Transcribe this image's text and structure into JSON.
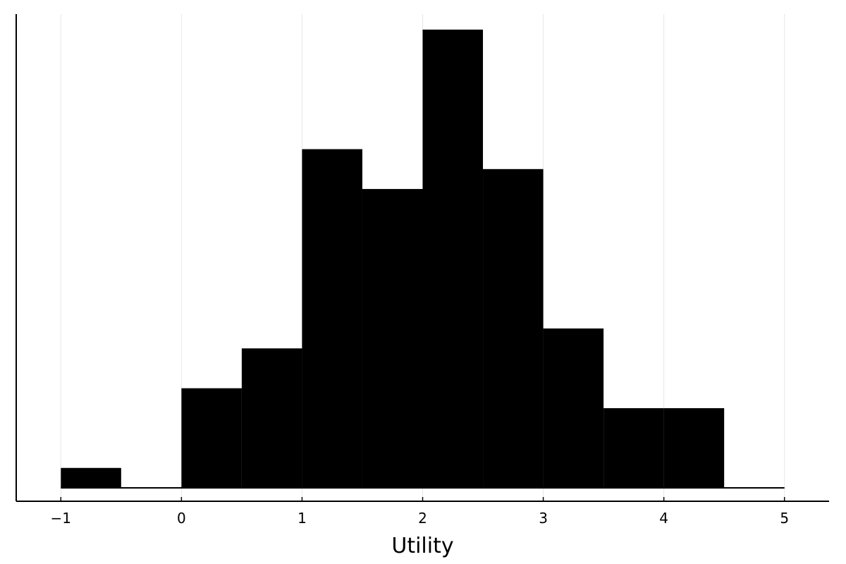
{
  "chart_data": {
    "type": "bar",
    "subtype": "histogram",
    "xlabel": "Utility",
    "ylabel": "",
    "xlim": [
      -1.37,
      5.37
    ],
    "ylim": [
      0,
      23
    ],
    "x_ticks": [
      -1,
      0,
      1,
      2,
      3,
      4,
      5
    ],
    "x_tick_labels": [
      "−1",
      "0",
      "1",
      "2",
      "3",
      "4",
      "5"
    ],
    "bin_edges": [
      -1,
      -0.5,
      0,
      0.5,
      1,
      1.5,
      2,
      2.5,
      3,
      3.5,
      4,
      4.5,
      5
    ],
    "counts": [
      1,
      0,
      5,
      7,
      17,
      15,
      23,
      16,
      8,
      4,
      4,
      0
    ],
    "grid": {
      "x": true,
      "y": false
    },
    "bar_color": "#000000",
    "grid_color": "#e6e6e6",
    "legend": "none"
  }
}
